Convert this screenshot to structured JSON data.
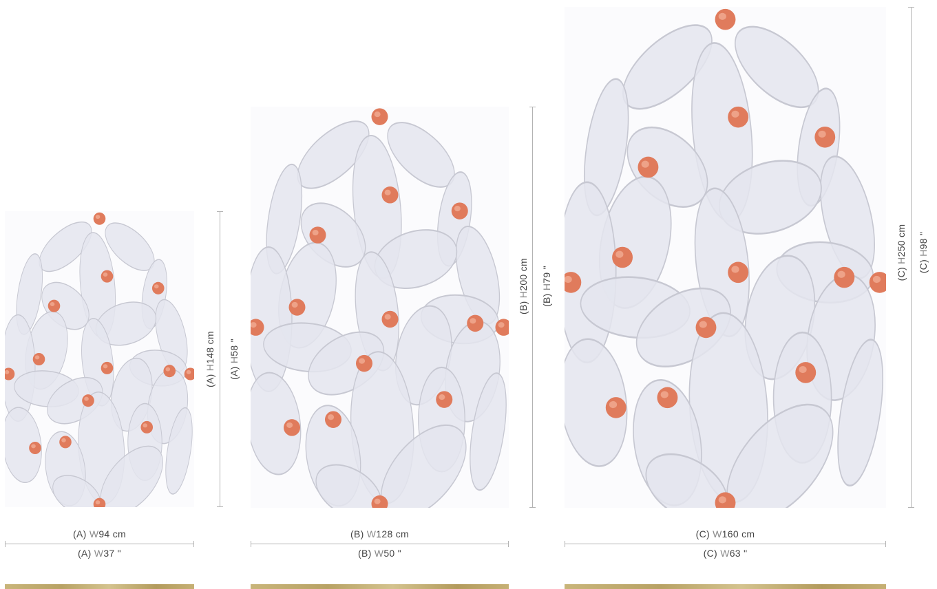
{
  "colors": {
    "petal_fill": "#e4e5ee",
    "petal_stroke": "#c7c8d2",
    "bead": "#e07b5c",
    "bead_highlight": "#f3b39b",
    "line": "#b3b3b3",
    "thumbnail": "#c2ac70"
  },
  "variants": [
    {
      "id": "A",
      "width_cm": {
        "prefix": "(A) ",
        "dim": "W",
        "value": "94 cm"
      },
      "width_in": {
        "prefix": "(A) ",
        "dim": "W",
        "value": "37 \""
      },
      "height_cm": {
        "prefix": "(A) ",
        "dim": "H",
        "value": "148 cm"
      },
      "height_in": {
        "prefix": "(A) ",
        "dim": "H",
        "value": "58 \""
      }
    },
    {
      "id": "B",
      "width_cm": {
        "prefix": "(B) ",
        "dim": "W",
        "value": "128 cm"
      },
      "width_in": {
        "prefix": "(B) ",
        "dim": "W",
        "value": "50 \""
      },
      "height_cm": {
        "prefix": "(B) ",
        "dim": "H",
        "value": "200 cm"
      },
      "height_in": {
        "prefix": "(B) ",
        "dim": "H",
        "value": "79 \""
      }
    },
    {
      "id": "C",
      "width_cm": {
        "prefix": "(C) ",
        "dim": "W",
        "value": "160 cm"
      },
      "width_in": {
        "prefix": "(C) ",
        "dim": "W",
        "value": "63 \""
      },
      "height_cm": {
        "prefix": "(C) ",
        "dim": "H",
        "value": "250 cm"
      },
      "height_in": {
        "prefix": "(C) ",
        "dim": "H",
        "value": "98 \""
      }
    }
  ]
}
